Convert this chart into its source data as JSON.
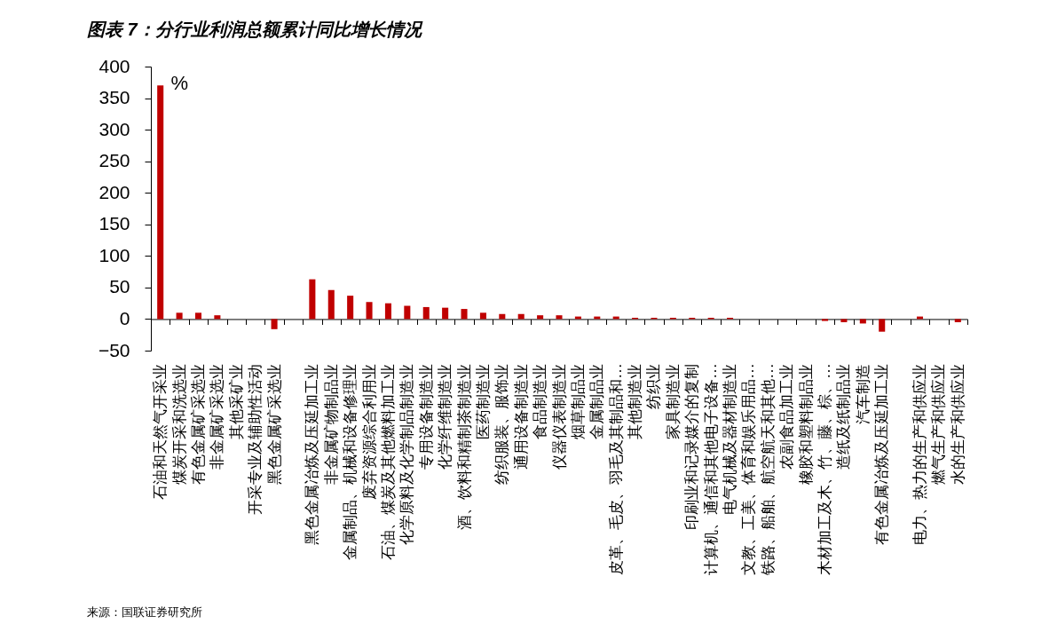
{
  "chart_data": {
    "type": "bar",
    "title": "图表 7：分行业利润总额累计同比增长情况",
    "ylabel": "%",
    "categories": [
      "石油和天然气开采业",
      "煤炭开采和洗选业",
      "有色金属矿采选业",
      "非金属矿采选业",
      "其他采矿业",
      "开采专业及辅助性活动",
      "黑色金属矿采选业",
      null,
      "黑色金属冶炼及压延加工业",
      "非金属矿物制品业",
      "金属制品、机械和设备修理业",
      "废弃资源综合利用业",
      "石油、煤炭及其他燃料加工业",
      "化学原料及化学制品制造业",
      "专用设备制造业",
      "化学纤维制造业",
      "酒、饮料和精制茶制造业",
      "医药制造业",
      "纺织服装、服饰业",
      "通用设备制造业",
      "食品制造业",
      "仪器仪表制造业",
      "烟草制品业",
      "金属制品业",
      "皮革、毛皮、羽毛及其制品和…",
      "其他制造业",
      "纺织业",
      "家具制造业",
      "印刷业和记录媒介的复制",
      "计算机、通信和其他电子设备…",
      "电气机械及器材制造业",
      "文教、工美、体育和娱乐用品…",
      "铁路、船舶、航空航天和其他…",
      "农副食品加工业",
      "橡胶和塑料制品业",
      "木材加工及木、竹、藤、棕、…",
      "造纸及纸制品业",
      "汽车制造",
      "有色金属冶炼及压延加工业",
      null,
      "电力、热力的生产和供应业",
      "燃气生产和供应业",
      "水的生产和供应业"
    ],
    "values": [
      370,
      10,
      10,
      6,
      0,
      0,
      -16,
      null,
      63,
      46,
      37,
      27,
      25,
      21,
      19,
      18,
      16,
      10,
      8,
      8,
      6,
      6,
      4,
      4,
      4,
      2,
      2,
      2,
      2,
      2,
      2,
      0,
      0,
      0,
      0,
      -3,
      -5,
      -7,
      -20,
      null,
      4,
      0,
      -5
    ],
    "color": "#c00000",
    "ylim": [
      -50,
      400
    ],
    "yticks": [
      -50,
      0,
      50,
      100,
      150,
      200,
      250,
      300,
      350,
      400
    ],
    "annotations": [
      "来源：国联证券研究所"
    ]
  }
}
